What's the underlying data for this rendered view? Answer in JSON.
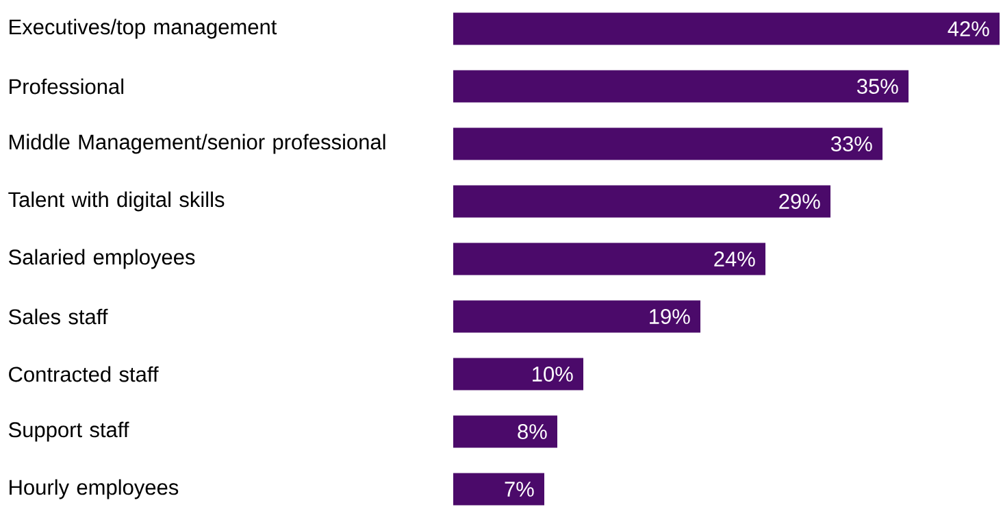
{
  "chart_data": {
    "type": "bar",
    "orientation": "horizontal",
    "categories": [
      "Executives/top management",
      "Professional",
      "Middle Management/senior professional",
      "Talent with digital skills",
      "Salaried employees",
      "Sales staff",
      "Contracted staff",
      "Support staff",
      "Hourly employees"
    ],
    "values": [
      42,
      35,
      33,
      29,
      24,
      19,
      10,
      8,
      7
    ],
    "value_labels": [
      "42%",
      "35%",
      "33%",
      "29%",
      "24%",
      "19%",
      "10%",
      "8%",
      "7%"
    ],
    "color": "#4b0a6a"
  }
}
